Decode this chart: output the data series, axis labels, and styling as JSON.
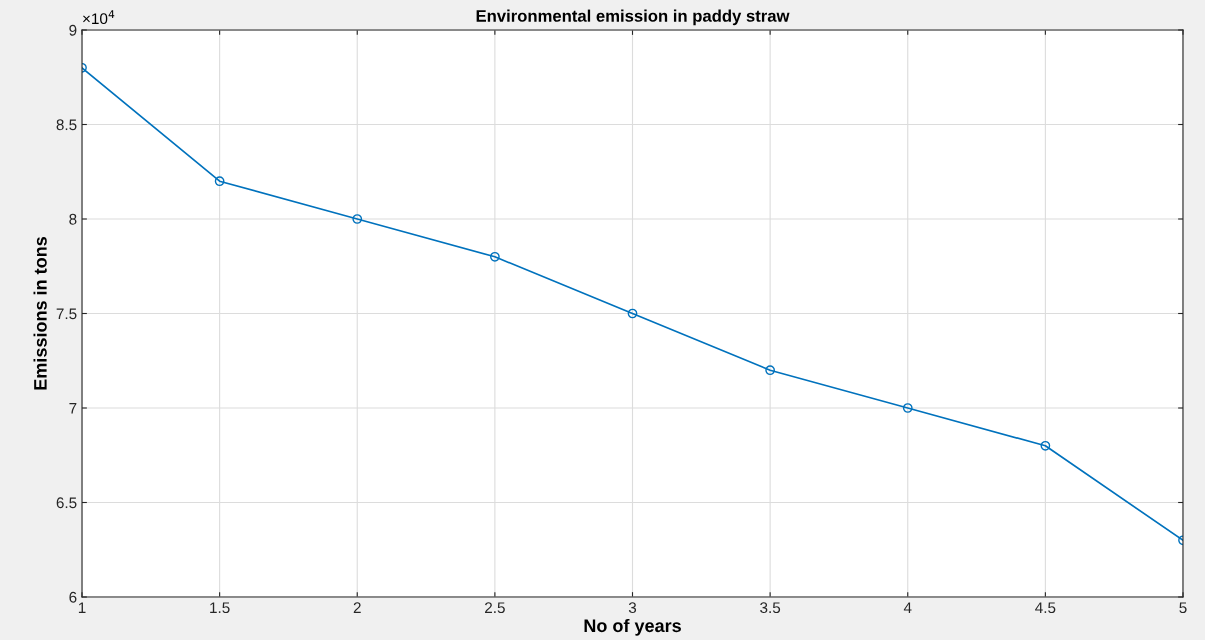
{
  "chart_data": {
    "type": "line",
    "title": "Environmental emission in paddy straw",
    "xlabel": "No of years",
    "ylabel": "Emissions in tons",
    "x": [
      1,
      1.5,
      2,
      2.5,
      3,
      3.5,
      4,
      4.5,
      5
    ],
    "series": [
      {
        "color": "#0072bd",
        "values": [
          8.8,
          8.2,
          8.0,
          7.8,
          7.5,
          7.2,
          7.0,
          6.8,
          6.3
        ]
      }
    ],
    "xlim": [
      1,
      5
    ],
    "xticks": [
      1,
      1.5,
      2,
      2.5,
      3,
      3.5,
      4,
      4.5,
      5
    ],
    "ylim": [
      6,
      9
    ],
    "yticks": [
      6,
      6.5,
      7,
      7.5,
      8,
      8.5,
      9
    ],
    "annotations": [
      "×10$^{4}$"
    ],
    "grid": true,
    "marker": "circle",
    "line_style": "solid"
  }
}
